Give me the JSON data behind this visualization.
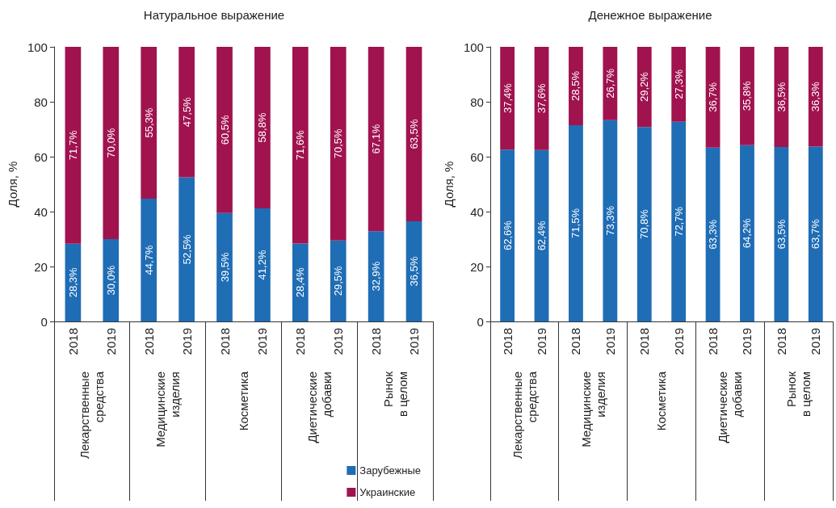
{
  "chart_data": [
    {
      "type": "bar",
      "stacked": true,
      "title": "Натуральное выражение",
      "ylabel": "Доля, %",
      "categories": [
        "2018",
        "2019",
        "2018",
        "2019",
        "2018",
        "2019",
        "2018",
        "2019",
        "2018",
        "2019"
      ],
      "annotations": [
        "Лекарственные средства",
        "Медицинские изделия",
        "Косметика",
        "Диетические добавки",
        "Рынок в целом"
      ],
      "series": [
        {
          "name": "Зарубежные",
          "color": "#1f6db5",
          "values": [
            28.3,
            30.0,
            44.7,
            52.5,
            39.5,
            41.2,
            28.4,
            29.5,
            32.9,
            36.5
          ],
          "value_labels": [
            "28,3%",
            "30,0%",
            "44,7%",
            "52,5%",
            "39,5%",
            "41,2%",
            "28,4%",
            "29,5%",
            "32,9%",
            "36,5%"
          ]
        },
        {
          "name": "Украинские",
          "color": "#a0134f",
          "values": [
            71.7,
            70.0,
            55.3,
            47.5,
            60.5,
            58.8,
            71.6,
            70.5,
            67.1,
            63.5
          ],
          "value_labels": [
            "71,7%",
            "70,0%",
            "55,3%",
            "47,5%",
            "60,5%",
            "58,8%",
            "71,6%",
            "70,5%",
            "67,1%",
            "63,5%"
          ]
        }
      ],
      "ylim": [
        0,
        100
      ],
      "yticks": [
        0,
        20,
        40,
        60,
        80,
        100
      ],
      "legend": "bottom right"
    },
    {
      "type": "bar",
      "stacked": true,
      "title": "Денежное выражение",
      "ylabel": "Доля, %",
      "categories": [
        "2018",
        "2019",
        "2018",
        "2019",
        "2018",
        "2019",
        "2018",
        "2019",
        "2018",
        "2019"
      ],
      "annotations": [
        "Лекарственные средства",
        "Медицинские изделия",
        "Косметика",
        "Диетические добавки",
        "Рынок в целом"
      ],
      "series": [
        {
          "color": "#1f6db5",
          "values": [
            62.6,
            62.4,
            71.5,
            73.3,
            70.8,
            72.7,
            63.3,
            64.2,
            63.5,
            63.7
          ],
          "value_labels": [
            "62,6%",
            "62,4%",
            "71,5%",
            "73,3%",
            "70,8%",
            "72,7%",
            "63,3%",
            "64,2%",
            "63,5%",
            "63,7%"
          ]
        },
        {
          "color": "#a0134f",
          "values": [
            37.4,
            37.6,
            28.5,
            26.7,
            29.2,
            27.3,
            36.7,
            35.8,
            36.5,
            36.3
          ],
          "value_labels": [
            "37,4%",
            "37,6%",
            "28,5%",
            "26,7%",
            "29,2%",
            "27,3%",
            "36,7%",
            "35,8%",
            "36,5%",
            "36,3%"
          ]
        }
      ],
      "ylim": [
        0,
        100
      ],
      "yticks": [
        0,
        20,
        40,
        60,
        80,
        100
      ]
    }
  ]
}
